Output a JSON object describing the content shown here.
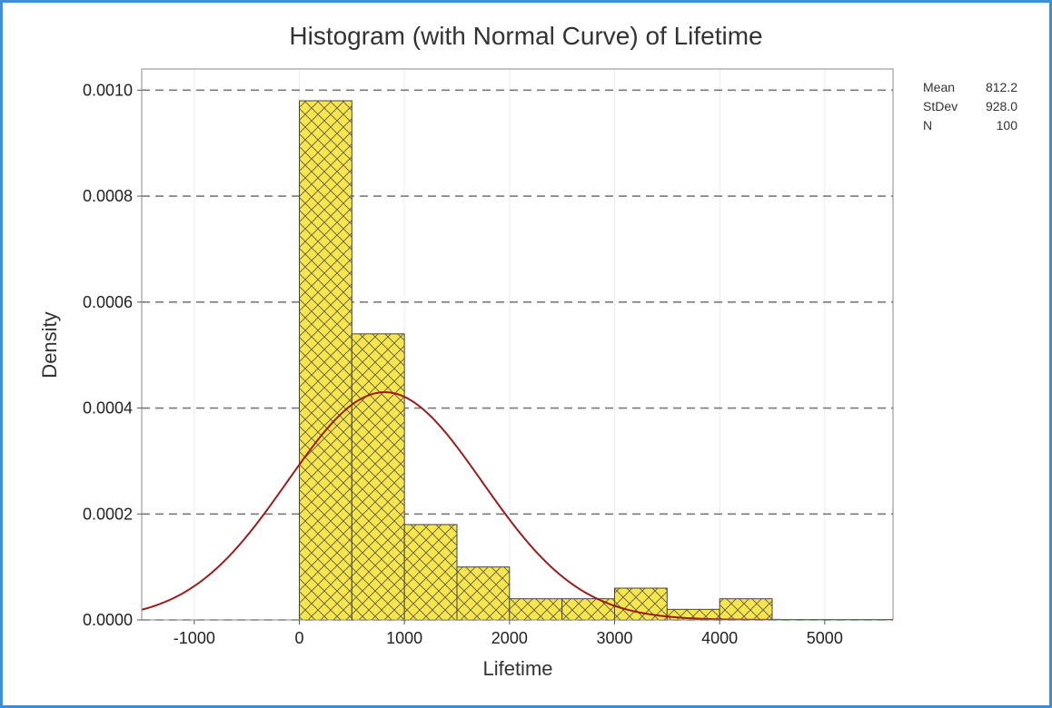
{
  "chart_data": {
    "type": "bar",
    "title": "Histogram (with Normal Curve) of Lifetime",
    "xlabel": "Lifetime",
    "ylabel": "Density",
    "xlim": [
      -1500,
      5650
    ],
    "ylim": [
      0,
      0.00104
    ],
    "x_ticks": [
      -1000,
      0,
      1000,
      2000,
      3000,
      4000,
      5000
    ],
    "x_tick_labels": [
      "-1000",
      "0",
      "1000",
      "2000",
      "3000",
      "4000",
      "5000"
    ],
    "y_ticks": [
      0,
      0.0002,
      0.0004,
      0.0006,
      0.0008,
      0.001
    ],
    "y_tick_labels": [
      "0.0000",
      "0.0002",
      "0.0004",
      "0.0006",
      "0.0008",
      "0.0010"
    ],
    "grid": "horizontal dashed",
    "bins": [
      {
        "start": 0,
        "end": 500,
        "density": 0.00098
      },
      {
        "start": 500,
        "end": 1000,
        "density": 0.00054
      },
      {
        "start": 1000,
        "end": 1500,
        "density": 0.00018
      },
      {
        "start": 1500,
        "end": 2000,
        "density": 0.0001
      },
      {
        "start": 2000,
        "end": 2500,
        "density": 4e-05
      },
      {
        "start": 2500,
        "end": 3000,
        "density": 4e-05
      },
      {
        "start": 3000,
        "end": 3500,
        "density": 6e-05
      },
      {
        "start": 3500,
        "end": 4000,
        "density": 2e-05
      },
      {
        "start": 4000,
        "end": 4500,
        "density": 4e-05
      }
    ],
    "normal_curve": {
      "mean": 812.2,
      "stdev": 928.0
    },
    "colors": {
      "bar_fill": "#f7e64b",
      "bar_edge": "#444444",
      "curve": "#9b1c1c",
      "grid": "#7a7a7a"
    }
  },
  "stats": [
    {
      "label": "Mean",
      "value": "812.2"
    },
    {
      "label": "StDev",
      "value": "928.0"
    },
    {
      "label": "N",
      "value": "100"
    }
  ]
}
